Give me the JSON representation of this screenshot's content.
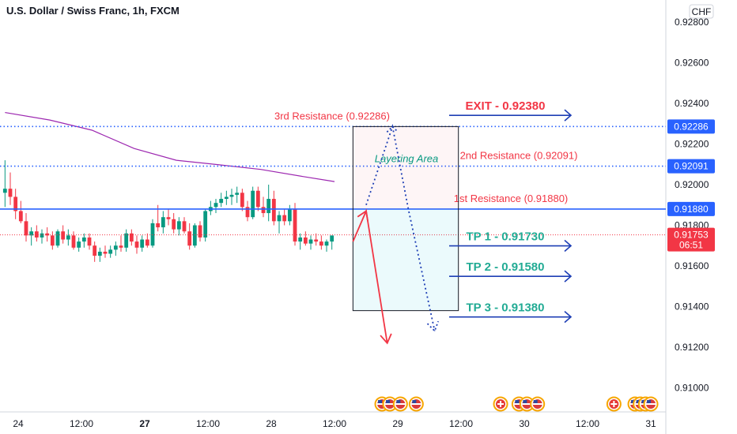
{
  "header": {
    "title": "U.S. Dollar / Swiss Franc, 1h, FXCM"
  },
  "currency_badge": "CHF",
  "colors": {
    "up": "#089981",
    "down": "#f23645",
    "resistance_line": "#2962ff",
    "arrow_blue": "#1e3fb5",
    "ma": "#9c27b0",
    "price_tag": "#f23645",
    "level_tag": "#2962ff"
  },
  "chart_data": {
    "type": "candlestick",
    "title": "U.S. Dollar / Swiss Franc, 1h, FXCM",
    "ylim": [
      0.909,
      0.929
    ],
    "y_ticks": [
      "0.92800",
      "0.92600",
      "0.92400",
      "0.92200",
      "0.92000",
      "0.91800",
      "0.91600",
      "0.91400",
      "0.91200",
      "0.91000"
    ],
    "y_tick_values": [
      0.928,
      0.926,
      0.924,
      0.922,
      0.92,
      0.918,
      0.916,
      0.914,
      0.912,
      0.91
    ],
    "x_ticks": [
      "24",
      "12:00",
      "27",
      "12:00",
      "28",
      "12:00",
      "29",
      "12:00",
      "30",
      "12:00",
      "31"
    ],
    "x_tick_times": [
      0,
      12,
      24,
      36,
      48,
      60,
      72,
      84,
      96,
      108,
      120
    ],
    "candles": [
      {
        "t": -2.5,
        "o": 0.9196,
        "h": 0.9212,
        "l": 0.9189,
        "c": 0.9198
      },
      {
        "t": -1.5,
        "o": 0.9198,
        "h": 0.9206,
        "l": 0.919,
        "c": 0.9194
      },
      {
        "t": -0.5,
        "o": 0.9194,
        "h": 0.9198,
        "l": 0.9183,
        "c": 0.9187
      },
      {
        "t": 0.5,
        "o": 0.9187,
        "h": 0.9192,
        "l": 0.9181,
        "c": 0.9182
      },
      {
        "t": 1.5,
        "o": 0.9182,
        "h": 0.9186,
        "l": 0.9172,
        "c": 0.9175
      },
      {
        "t": 2.5,
        "o": 0.9175,
        "h": 0.9179,
        "l": 0.917,
        "c": 0.9177
      },
      {
        "t": 3.5,
        "o": 0.9177,
        "h": 0.918,
        "l": 0.9172,
        "c": 0.9174
      },
      {
        "t": 4.5,
        "o": 0.9174,
        "h": 0.9178,
        "l": 0.9171,
        "c": 0.9176
      },
      {
        "t": 5.5,
        "o": 0.9176,
        "h": 0.9179,
        "l": 0.9172,
        "c": 0.9175
      },
      {
        "t": 6.5,
        "o": 0.9175,
        "h": 0.9177,
        "l": 0.9168,
        "c": 0.917
      },
      {
        "t": 7.5,
        "o": 0.917,
        "h": 0.9178,
        "l": 0.9169,
        "c": 0.9177
      },
      {
        "t": 8.5,
        "o": 0.9177,
        "h": 0.918,
        "l": 0.9171,
        "c": 0.9173
      },
      {
        "t": 9.5,
        "o": 0.9173,
        "h": 0.9178,
        "l": 0.917,
        "c": 0.9175
      },
      {
        "t": 10.5,
        "o": 0.9175,
        "h": 0.9177,
        "l": 0.9168,
        "c": 0.9169
      },
      {
        "t": 11.5,
        "o": 0.9169,
        "h": 0.9174,
        "l": 0.9167,
        "c": 0.9172
      },
      {
        "t": 12.5,
        "o": 0.9172,
        "h": 0.9176,
        "l": 0.9169,
        "c": 0.9174
      },
      {
        "t": 13.5,
        "o": 0.9174,
        "h": 0.9176,
        "l": 0.9168,
        "c": 0.917
      },
      {
        "t": 14.5,
        "o": 0.917,
        "h": 0.9172,
        "l": 0.9162,
        "c": 0.9165
      },
      {
        "t": 15.5,
        "o": 0.9165,
        "h": 0.9169,
        "l": 0.9162,
        "c": 0.9167
      },
      {
        "t": 16.5,
        "o": 0.9167,
        "h": 0.917,
        "l": 0.9164,
        "c": 0.9166
      },
      {
        "t": 17.5,
        "o": 0.9166,
        "h": 0.917,
        "l": 0.9164,
        "c": 0.9168
      },
      {
        "t": 18.5,
        "o": 0.9168,
        "h": 0.9172,
        "l": 0.9165,
        "c": 0.917
      },
      {
        "t": 19.5,
        "o": 0.917,
        "h": 0.9175,
        "l": 0.9167,
        "c": 0.9169
      },
      {
        "t": 20.5,
        "o": 0.9169,
        "h": 0.9178,
        "l": 0.9167,
        "c": 0.9176
      },
      {
        "t": 21.5,
        "o": 0.9176,
        "h": 0.9178,
        "l": 0.917,
        "c": 0.9172
      },
      {
        "t": 22.5,
        "o": 0.9172,
        "h": 0.9175,
        "l": 0.9166,
        "c": 0.9169
      },
      {
        "t": 23.5,
        "o": 0.9169,
        "h": 0.9175,
        "l": 0.9167,
        "c": 0.9173
      },
      {
        "t": 24.5,
        "o": 0.9173,
        "h": 0.9176,
        "l": 0.9169,
        "c": 0.917
      },
      {
        "t": 25.5,
        "o": 0.917,
        "h": 0.9183,
        "l": 0.9169,
        "c": 0.9181
      },
      {
        "t": 26.5,
        "o": 0.9181,
        "h": 0.919,
        "l": 0.9177,
        "c": 0.9179
      },
      {
        "t": 27.5,
        "o": 0.9179,
        "h": 0.9187,
        "l": 0.9176,
        "c": 0.9184
      },
      {
        "t": 28.5,
        "o": 0.9184,
        "h": 0.9188,
        "l": 0.918,
        "c": 0.9183
      },
      {
        "t": 29.5,
        "o": 0.9183,
        "h": 0.9186,
        "l": 0.9176,
        "c": 0.9178
      },
      {
        "t": 30.5,
        "o": 0.9178,
        "h": 0.9184,
        "l": 0.9175,
        "c": 0.9182
      },
      {
        "t": 31.5,
        "o": 0.9182,
        "h": 0.9184,
        "l": 0.9176,
        "c": 0.9177
      },
      {
        "t": 32.5,
        "o": 0.9177,
        "h": 0.9181,
        "l": 0.9168,
        "c": 0.917
      },
      {
        "t": 33.5,
        "o": 0.917,
        "h": 0.9181,
        "l": 0.9169,
        "c": 0.918
      },
      {
        "t": 34.5,
        "o": 0.918,
        "h": 0.9182,
        "l": 0.9172,
        "c": 0.9174
      },
      {
        "t": 35.5,
        "o": 0.9174,
        "h": 0.9188,
        "l": 0.9172,
        "c": 0.9187
      },
      {
        "t": 36.5,
        "o": 0.9187,
        "h": 0.9192,
        "l": 0.9185,
        "c": 0.9189
      },
      {
        "t": 37.5,
        "o": 0.9189,
        "h": 0.9193,
        "l": 0.9186,
        "c": 0.9191
      },
      {
        "t": 38.5,
        "o": 0.9191,
        "h": 0.9196,
        "l": 0.9189,
        "c": 0.9193
      },
      {
        "t": 39.5,
        "o": 0.9193,
        "h": 0.9197,
        "l": 0.919,
        "c": 0.9194
      },
      {
        "t": 40.5,
        "o": 0.9194,
        "h": 0.9198,
        "l": 0.919,
        "c": 0.9195
      },
      {
        "t": 41.5,
        "o": 0.9195,
        "h": 0.9199,
        "l": 0.9191,
        "c": 0.9196
      },
      {
        "t": 42.5,
        "o": 0.9196,
        "h": 0.9198,
        "l": 0.9187,
        "c": 0.9189
      },
      {
        "t": 43.5,
        "o": 0.9189,
        "h": 0.9192,
        "l": 0.9182,
        "c": 0.9184
      },
      {
        "t": 44.5,
        "o": 0.9184,
        "h": 0.9199,
        "l": 0.9183,
        "c": 0.9197
      },
      {
        "t": 45.5,
        "o": 0.9197,
        "h": 0.9199,
        "l": 0.9187,
        "c": 0.9189
      },
      {
        "t": 46.5,
        "o": 0.9189,
        "h": 0.9194,
        "l": 0.9184,
        "c": 0.9186
      },
      {
        "t": 47.5,
        "o": 0.9186,
        "h": 0.92,
        "l": 0.9182,
        "c": 0.9193
      },
      {
        "t": 48.5,
        "o": 0.9193,
        "h": 0.9197,
        "l": 0.918,
        "c": 0.9182
      },
      {
        "t": 49.5,
        "o": 0.9182,
        "h": 0.9187,
        "l": 0.9176,
        "c": 0.9185
      },
      {
        "t": 50.5,
        "o": 0.9185,
        "h": 0.9188,
        "l": 0.918,
        "c": 0.9182
      },
      {
        "t": 51.5,
        "o": 0.9182,
        "h": 0.919,
        "l": 0.918,
        "c": 0.9188
      },
      {
        "t": 52.5,
        "o": 0.9188,
        "h": 0.9191,
        "l": 0.917,
        "c": 0.9172
      },
      {
        "t": 53.5,
        "o": 0.9172,
        "h": 0.9176,
        "l": 0.9168,
        "c": 0.9174
      },
      {
        "t": 54.5,
        "o": 0.9174,
        "h": 0.9177,
        "l": 0.917,
        "c": 0.9171
      },
      {
        "t": 55.5,
        "o": 0.9171,
        "h": 0.9175,
        "l": 0.9168,
        "c": 0.9173
      },
      {
        "t": 56.5,
        "o": 0.9173,
        "h": 0.9176,
        "l": 0.917,
        "c": 0.9172
      },
      {
        "t": 57.5,
        "o": 0.9172,
        "h": 0.9175,
        "l": 0.9168,
        "c": 0.917
      },
      {
        "t": 58.5,
        "o": 0.917,
        "h": 0.9173,
        "l": 0.9167,
        "c": 0.9172
      },
      {
        "t": 59.5,
        "o": 0.9172,
        "h": 0.9174,
        "l": 0.9168,
        "c": 0.9175
      }
    ],
    "moving_average": {
      "color": "#9c27b0",
      "points": [
        [
          -2.5,
          0.92355
        ],
        [
          6,
          0.92318
        ],
        [
          14,
          0.92268
        ],
        [
          22,
          0.92178
        ],
        [
          30,
          0.9212
        ],
        [
          38,
          0.92098
        ],
        [
          46,
          0.92075
        ],
        [
          54,
          0.9204
        ],
        [
          60,
          0.92015
        ]
      ]
    },
    "horizontal_levels": [
      {
        "label": "3rd Resistance (0.92286)",
        "value": 0.92286,
        "tag": "0.92286",
        "style": "dotted"
      },
      {
        "label": "2nd Resistance (0.92091)",
        "value": 0.92091,
        "tag": "0.92091",
        "style": "dotted"
      },
      {
        "label": "1st Resistance (0.91880)",
        "value": 0.9188,
        "tag": "0.91880",
        "style": "solid"
      }
    ],
    "current_price": {
      "value": 0.91753,
      "tag": "0.91753",
      "countdown": "06:51"
    },
    "targets": [
      {
        "label": "EXIT - 0.92380",
        "value": 0.9238,
        "kind": "exit"
      },
      {
        "label": "TP 1 - 0.91730",
        "value": 0.9173,
        "kind": "tp"
      },
      {
        "label": "TP 2 - 0.91580",
        "value": 0.9158,
        "kind": "tp"
      },
      {
        "label": "TP 3 - 0.91380",
        "value": 0.9138,
        "kind": "tp"
      }
    ],
    "layering_area": {
      "label": "Layering Area",
      "t_start": 63.5,
      "t_end": 83.5,
      "top": 0.92286,
      "mid": 0.9188,
      "bottom": 0.9138
    },
    "scenario_up_path": [
      [
        66,
        0.919
      ],
      [
        71,
        0.92286
      ],
      [
        74,
        0.9188
      ],
      [
        79,
        0.9128
      ]
    ],
    "scenario_down_path": [
      [
        63.5,
        0.9172
      ],
      [
        66,
        0.9187
      ],
      [
        70,
        0.9122
      ]
    ],
    "event_markers": [
      {
        "t": 69,
        "kind": "us"
      },
      {
        "t": 70.5,
        "kind": "us"
      },
      {
        "t": 72.5,
        "kind": "us"
      },
      {
        "t": 75.5,
        "kind": "us"
      },
      {
        "t": 91.5,
        "kind": "ch"
      },
      {
        "t": 95,
        "kind": "us"
      },
      {
        "t": 96.5,
        "kind": "us"
      },
      {
        "t": 98.5,
        "kind": "us"
      },
      {
        "t": 113,
        "kind": "ch"
      },
      {
        "t": 117,
        "kind": "us"
      },
      {
        "t": 118,
        "kind": "us"
      },
      {
        "t": 119,
        "kind": "us"
      },
      {
        "t": 120,
        "kind": "us"
      }
    ]
  }
}
